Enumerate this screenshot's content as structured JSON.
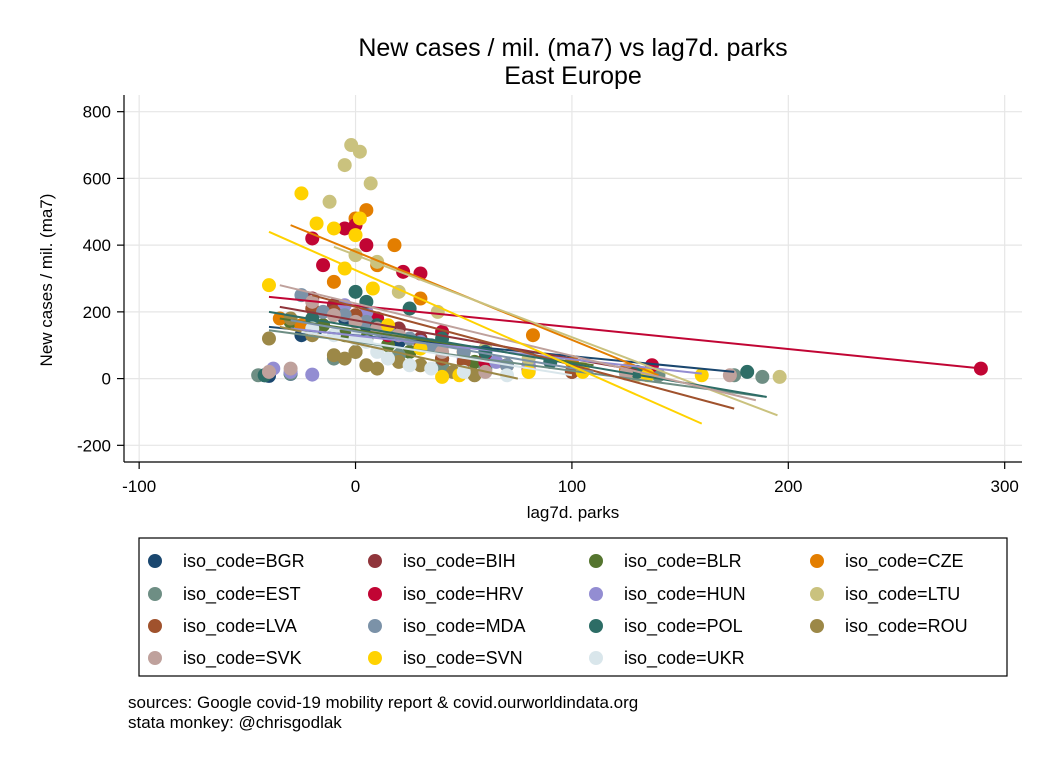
{
  "chart_data": {
    "type": "scatter",
    "title": "New cases / mil. (ma7) vs lag7d. parks",
    "subtitle": "East Europe",
    "xlabel": "lag7d. parks",
    "ylabel": "New cases / mil. (ma7)",
    "xlim": [
      -107,
      308
    ],
    "ylim": [
      -250,
      850
    ],
    "xticks": [
      "-100",
      "0",
      "100",
      "200",
      "300"
    ],
    "yticks": [
      "-200",
      "0",
      "200",
      "400",
      "600",
      "800"
    ],
    "grid": true,
    "legend_position": "bottom",
    "notes": [
      "sources: Google covid-19 mobility report & covid.ourworldindata.org",
      "stata monkey: @chrisgodlak"
    ],
    "series": [
      {
        "name": "iso_code=BGR",
        "color": "#1a476f",
        "points": [
          [
            -42,
            10
          ],
          [
            -40,
            8
          ],
          [
            -30,
            14
          ],
          [
            -25,
            130
          ],
          [
            -18,
            150
          ],
          [
            -5,
            180
          ],
          [
            5,
            160
          ],
          [
            20,
            110
          ],
          [
            40,
            60
          ],
          [
            60,
            40
          ],
          [
            80,
            25
          ]
        ],
        "fit": [
          [
            -40,
            155
          ],
          [
            175,
            20
          ]
        ]
      },
      {
        "name": "iso_code=BIH",
        "color": "#90353b",
        "points": [
          [
            -20,
            240
          ],
          [
            -10,
            220
          ],
          [
            0,
            180
          ],
          [
            10,
            170
          ],
          [
            20,
            150
          ],
          [
            30,
            120
          ],
          [
            40,
            100
          ],
          [
            60,
            60
          ],
          [
            80,
            40
          ],
          [
            100,
            20
          ]
        ],
        "fit": [
          [
            -35,
            215
          ],
          [
            130,
            25
          ]
        ]
      },
      {
        "name": "iso_code=BLR",
        "color": "#55752f",
        "points": [
          [
            -30,
            170
          ],
          [
            -15,
            160
          ],
          [
            -5,
            130
          ],
          [
            5,
            120
          ],
          [
            15,
            100
          ],
          [
            25,
            80
          ],
          [
            40,
            60
          ],
          [
            55,
            50
          ],
          [
            70,
            40
          ]
        ],
        "fit": [
          [
            -35,
            180
          ],
          [
            110,
            40
          ]
        ]
      },
      {
        "name": "iso_code=CZE",
        "color": "#e37e00",
        "points": [
          [
            -35,
            180
          ],
          [
            -25,
            160
          ],
          [
            -10,
            290
          ],
          [
            0,
            480
          ],
          [
            5,
            505
          ],
          [
            10,
            340
          ],
          [
            18,
            400
          ],
          [
            30,
            240
          ],
          [
            50,
            80
          ],
          [
            82,
            130
          ],
          [
            100,
            50
          ],
          [
            125,
            25
          ],
          [
            135,
            15
          ]
        ],
        "fit": [
          [
            -30,
            460
          ],
          [
            140,
            10
          ]
        ]
      },
      {
        "name": "iso_code=EST",
        "color": "#6e8e84",
        "points": [
          [
            -45,
            10
          ],
          [
            -30,
            15
          ],
          [
            -10,
            60
          ],
          [
            0,
            80
          ],
          [
            20,
            70
          ],
          [
            40,
            40
          ],
          [
            60,
            30
          ],
          [
            100,
            20
          ],
          [
            140,
            10
          ],
          [
            175,
            10
          ],
          [
            188,
            5
          ]
        ],
        "fit": [
          [
            -40,
            145
          ],
          [
            190,
            -55
          ]
        ]
      },
      {
        "name": "iso_code=HRV",
        "color": "#c10534",
        "points": [
          [
            -20,
            420
          ],
          [
            -15,
            340
          ],
          [
            -5,
            450
          ],
          [
            0,
            460
          ],
          [
            5,
            400
          ],
          [
            10,
            180
          ],
          [
            15,
            130
          ],
          [
            22,
            320
          ],
          [
            30,
            315
          ],
          [
            40,
            140
          ],
          [
            60,
            50
          ],
          [
            80,
            30
          ],
          [
            137,
            40
          ],
          [
            289,
            30
          ]
        ],
        "fit": [
          [
            -40,
            245
          ],
          [
            290,
            30
          ]
        ]
      },
      {
        "name": "iso_code=HUN",
        "color": "#938dd2",
        "points": [
          [
            -38,
            30
          ],
          [
            -30,
            20
          ],
          [
            -20,
            12
          ],
          [
            -5,
            220
          ],
          [
            5,
            200
          ],
          [
            15,
            140
          ],
          [
            30,
            110
          ],
          [
            50,
            60
          ],
          [
            65,
            50
          ],
          [
            80,
            40
          ],
          [
            100,
            20
          ]
        ],
        "fit": [
          [
            -30,
            150
          ],
          [
            160,
            15
          ]
        ]
      },
      {
        "name": "iso_code=LTU",
        "color": "#cac27e",
        "points": [
          [
            -12,
            530
          ],
          [
            -5,
            640
          ],
          [
            -2,
            700
          ],
          [
            2,
            680
          ],
          [
            7,
            585
          ],
          [
            0,
            370
          ],
          [
            10,
            350
          ],
          [
            20,
            260
          ],
          [
            38,
            200
          ],
          [
            60,
            90
          ],
          [
            80,
            60
          ],
          [
            105,
            30
          ],
          [
            130,
            10
          ],
          [
            196,
            5
          ]
        ],
        "fit": [
          [
            -10,
            395
          ],
          [
            195,
            -110
          ]
        ]
      },
      {
        "name": "iso_code=LVA",
        "color": "#a0522d",
        "points": [
          [
            -20,
            210
          ],
          [
            -10,
            200
          ],
          [
            0,
            190
          ],
          [
            10,
            160
          ],
          [
            20,
            130
          ],
          [
            30,
            100
          ],
          [
            40,
            60
          ],
          [
            50,
            50
          ],
          [
            70,
            40
          ],
          [
            100,
            20
          ]
        ],
        "fit": [
          [
            -20,
            250
          ],
          [
            175,
            -90
          ]
        ]
      },
      {
        "name": "iso_code=MDA",
        "color": "#7b92a8",
        "points": [
          [
            -25,
            250
          ],
          [
            -15,
            200
          ],
          [
            -5,
            190
          ],
          [
            5,
            170
          ],
          [
            15,
            150
          ],
          [
            25,
            120
          ],
          [
            35,
            100
          ],
          [
            50,
            80
          ],
          [
            70,
            40
          ]
        ],
        "fit": [
          [
            -30,
            175
          ],
          [
            110,
            20
          ]
        ]
      },
      {
        "name": "iso_code=POL",
        "color": "#2d6d66",
        "points": [
          [
            -42,
            10
          ],
          [
            -20,
            180
          ],
          [
            0,
            260
          ],
          [
            5,
            230
          ],
          [
            10,
            160
          ],
          [
            25,
            210
          ],
          [
            40,
            120
          ],
          [
            60,
            80
          ],
          [
            90,
            50
          ],
          [
            130,
            20
          ],
          [
            181,
            20
          ]
        ],
        "fit": [
          [
            -40,
            200
          ],
          [
            190,
            -55
          ]
        ]
      },
      {
        "name": "iso_code=ROU",
        "color": "#9c8847",
        "points": [
          [
            -40,
            120
          ],
          [
            -30,
            180
          ],
          [
            -20,
            130
          ],
          [
            -10,
            70
          ],
          [
            -5,
            60
          ],
          [
            0,
            80
          ],
          [
            5,
            40
          ],
          [
            10,
            30
          ],
          [
            20,
            50
          ],
          [
            30,
            40
          ],
          [
            45,
            20
          ],
          [
            55,
            10
          ]
        ],
        "fit": [
          [
            -35,
            155
          ],
          [
            75,
            0
          ]
        ]
      },
      {
        "name": "iso_code=SVK",
        "color": "#bfa19c",
        "points": [
          [
            -40,
            20
          ],
          [
            -30,
            30
          ],
          [
            -20,
            230
          ],
          [
            -10,
            190
          ],
          [
            0,
            170
          ],
          [
            10,
            150
          ],
          [
            20,
            130
          ],
          [
            40,
            80
          ],
          [
            60,
            20
          ],
          [
            80,
            20
          ],
          [
            125,
            15
          ],
          [
            173,
            10
          ]
        ],
        "fit": [
          [
            -35,
            280
          ],
          [
            185,
            -65
          ]
        ]
      },
      {
        "name": "iso_code=SVN",
        "color": "#ffd200",
        "points": [
          [
            -40,
            280
          ],
          [
            -25,
            555
          ],
          [
            -18,
            465
          ],
          [
            -10,
            450
          ],
          [
            -5,
            330
          ],
          [
            0,
            430
          ],
          [
            2,
            480
          ],
          [
            8,
            270
          ],
          [
            15,
            160
          ],
          [
            30,
            90
          ],
          [
            40,
            5
          ],
          [
            48,
            10
          ],
          [
            80,
            20
          ],
          [
            105,
            20
          ],
          [
            135,
            10
          ],
          [
            160,
            10
          ]
        ],
        "fit": [
          [
            -40,
            440
          ],
          [
            160,
            -135
          ]
        ]
      },
      {
        "name": "iso_code=UKR",
        "color": "#d9e6eb",
        "points": [
          [
            -20,
            150
          ],
          [
            -10,
            130
          ],
          [
            0,
            120
          ],
          [
            5,
            110
          ],
          [
            10,
            80
          ],
          [
            15,
            60
          ],
          [
            25,
            40
          ],
          [
            35,
            30
          ],
          [
            50,
            20
          ],
          [
            70,
            10
          ]
        ],
        "fit": [
          [
            -25,
            140
          ],
          [
            100,
            10
          ]
        ]
      }
    ]
  }
}
